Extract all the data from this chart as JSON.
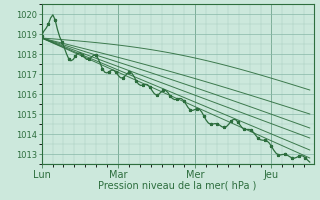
{
  "xlabel": "Pression niveau de la mer( hPa )",
  "bg_color": "#cce8dc",
  "plot_bg_color": "#cce8dc",
  "grid_color_minor": "#aacfc0",
  "grid_color_major": "#88b8a8",
  "line_color": "#2d6e3e",
  "ylim": [
    1012.5,
    1020.5
  ],
  "yticks": [
    1013,
    1014,
    1015,
    1016,
    1017,
    1018,
    1019,
    1020
  ],
  "xlim": [
    0,
    3.55
  ],
  "day_labels": [
    "Lun",
    "Mar",
    "Mer",
    "Jeu"
  ],
  "day_positions": [
    0,
    1,
    2,
    3
  ]
}
